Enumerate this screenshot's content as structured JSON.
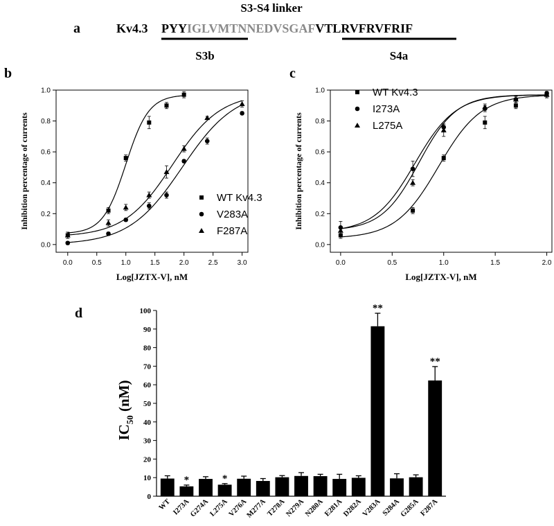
{
  "panel_a": {
    "label": "a",
    "header": "S3-S4 linker",
    "channel": "Kv4.3",
    "seq_black_1": "PYY",
    "seq_gray": "IGLVMTNNEDVSGAF",
    "seq_black_2": "VTLRVFRVFRIF",
    "s3b": "S3b",
    "s4a": "S4a",
    "gray_color": "#8a8a8a"
  },
  "chart_data": [
    {
      "panel": "b",
      "type": "scatter",
      "xlabel": "Log[JZTX-V], nM",
      "ylabel": "Inhibition percentage of currents",
      "xlim": [
        -0.2,
        3.1
      ],
      "ylim": [
        -0.05,
        1.0
      ],
      "xticks": [
        "0.0",
        "0.5",
        "1.0",
        "1.5",
        "2.0",
        "2.5",
        "3.0"
      ],
      "yticks": [
        "0.0",
        "0.2",
        "0.4",
        "0.6",
        "0.8",
        "1.0"
      ],
      "legend_position": "center-right",
      "series": [
        {
          "name": "WT Kv4.3",
          "marker": "square",
          "x": [
            0,
            0.7,
            1.0,
            1.4,
            1.7,
            2.0
          ],
          "y": [
            0.06,
            0.22,
            0.56,
            0.79,
            0.9,
            0.97
          ],
          "err": [
            0.02,
            0.02,
            0.02,
            0.04,
            0.02,
            0.02
          ],
          "fit": {
            "bottom": 0.07,
            "top": 0.97,
            "logec50": 1.0,
            "hill": 2.2
          }
        },
        {
          "name": "V283A",
          "marker": "circle",
          "x": [
            0,
            0.7,
            1.0,
            1.4,
            1.7,
            2.0,
            2.4,
            3.0
          ],
          "y": [
            0.01,
            0.07,
            0.16,
            0.25,
            0.32,
            0.54,
            0.67,
            0.85
          ],
          "err": [
            0.01,
            0.01,
            0.01,
            0.02,
            0.02,
            0.01,
            0.02,
            0.01
          ],
          "fit": {
            "bottom": 0.0,
            "top": 1.0,
            "logec50": 1.97,
            "hill": 0.95
          }
        },
        {
          "name": "F287A",
          "marker": "triangle",
          "x": [
            0,
            0.7,
            1.0,
            1.4,
            1.7,
            2.0,
            2.4,
            3.0
          ],
          "y": [
            0.06,
            0.14,
            0.24,
            0.32,
            0.47,
            0.62,
            0.82,
            0.91
          ],
          "err": [
            0.02,
            0.02,
            0.02,
            0.02,
            0.04,
            0.02,
            0.01,
            0.02
          ],
          "fit": {
            "bottom": 0.05,
            "top": 0.98,
            "logec50": 1.8,
            "hill": 1.05
          }
        }
      ]
    },
    {
      "panel": "c",
      "type": "scatter",
      "xlabel": "Log[JZTX-V], nM",
      "ylabel": "Inhibition percentage of currents",
      "xlim": [
        -0.1,
        2.05
      ],
      "ylim": [
        -0.05,
        1.0
      ],
      "xticks": [
        "0.0",
        "0.5",
        "1.0",
        "1.5",
        "2.0"
      ],
      "yticks": [
        "0.0",
        "0.2",
        "0.4",
        "0.6",
        "0.8",
        "1.0"
      ],
      "legend_position": "top-left",
      "series": [
        {
          "name": "WT Kv4.3",
          "marker": "square",
          "x": [
            0,
            0.7,
            1.0,
            1.4,
            1.7,
            2.0
          ],
          "y": [
            0.06,
            0.22,
            0.56,
            0.79,
            0.9,
            0.97
          ],
          "err": [
            0.02,
            0.02,
            0.02,
            0.04,
            0.02,
            0.02
          ],
          "fit": {
            "bottom": 0.04,
            "top": 0.97,
            "logec50": 0.95,
            "hill": 2.1
          }
        },
        {
          "name": "I273A",
          "marker": "circle",
          "x": [
            0,
            0.7,
            1.0,
            1.4,
            1.7,
            2.0
          ],
          "y": [
            0.11,
            0.49,
            0.76,
            0.88,
            0.94,
            0.98
          ],
          "err": [
            0.04,
            0.05,
            0.02,
            0.02,
            0.02,
            0.01
          ],
          "fit": {
            "bottom": 0.08,
            "top": 0.97,
            "logec50": 0.72,
            "hill": 2.2
          }
        },
        {
          "name": "L275A",
          "marker": "triangle",
          "x": [
            0,
            0.7,
            1.0,
            1.4,
            1.7,
            2.0
          ],
          "y": [
            0.09,
            0.4,
            0.74,
            0.89,
            0.94,
            0.97
          ],
          "err": [
            0.02,
            0.02,
            0.04,
            0.02,
            0.02,
            0.02
          ],
          "fit": {
            "bottom": 0.09,
            "top": 0.97,
            "logec50": 0.76,
            "hill": 2.4
          }
        }
      ]
    },
    {
      "panel": "d",
      "type": "bar",
      "ylabel_main": "IC",
      "ylabel_sub": "50",
      "ylabel_unit": " (nM)",
      "ylim": [
        0,
        100
      ],
      "yticks": [
        "0",
        "10",
        "20",
        "30",
        "40",
        "50",
        "60",
        "70",
        "80",
        "90",
        "100"
      ],
      "categories": [
        "WT",
        "I273A",
        "G274A",
        "L275A",
        "V276A",
        "M277A",
        "T278A",
        "N279A",
        "N280A",
        "E281A",
        "D282A",
        "V283A",
        "S284A",
        "G285A",
        "F287A"
      ],
      "values": [
        9.5,
        5.3,
        9.3,
        6.2,
        9.4,
        8.2,
        10.2,
        10.9,
        10.8,
        9.3,
        9.9,
        91.5,
        9.6,
        10.2,
        62.3
      ],
      "errors": [
        1.5,
        0.7,
        1.2,
        0.6,
        1.4,
        1.3,
        0.9,
        1.8,
        1.0,
        2.5,
        1.1,
        7.0,
        2.5,
        1.3,
        7.5
      ],
      "annotations": [
        "",
        "*",
        "",
        "*",
        "",
        "",
        "",
        "",
        "",
        "",
        "",
        "**",
        "",
        "",
        "**"
      ],
      "bar_color": "#000000"
    }
  ],
  "panel_labels": {
    "b": "b",
    "c": "c",
    "d": "d"
  }
}
